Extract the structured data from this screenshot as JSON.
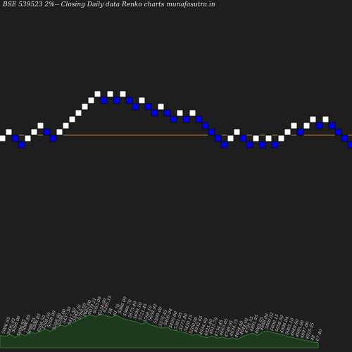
{
  "header": {
    "title": "BSE 539523 2%-- Closing Daily data Renko charts munafasutra.in"
  },
  "colors": {
    "background": "#1e1e1e",
    "up_brick": "#ffffff",
    "down_brick": "#0000ee",
    "brick_border": "#0a0a0a",
    "reference_line": "#c07820",
    "volume_fill": "#1e3a1e",
    "volume_line": "#2f7a2f"
  },
  "chart_data": {
    "type": "renko",
    "title": "BSE 539523 2%-- Closing Daily data Renko charts munafasutra.in",
    "brick_size": "2%",
    "brick_level_step": 1,
    "bricks": [
      {
        "level": 0,
        "dir": "up"
      },
      {
        "level": 1,
        "dir": "up"
      },
      {
        "level": 0,
        "dir": "down"
      },
      {
        "level": -1,
        "dir": "down"
      },
      {
        "level": 0,
        "dir": "up"
      },
      {
        "level": 1,
        "dir": "up"
      },
      {
        "level": 2,
        "dir": "up"
      },
      {
        "level": 1,
        "dir": "down"
      },
      {
        "level": 0,
        "dir": "down"
      },
      {
        "level": 1,
        "dir": "up"
      },
      {
        "level": 2,
        "dir": "up"
      },
      {
        "level": 3,
        "dir": "up"
      },
      {
        "level": 4,
        "dir": "up"
      },
      {
        "level": 5,
        "dir": "up"
      },
      {
        "level": 6,
        "dir": "up"
      },
      {
        "level": 7,
        "dir": "up"
      },
      {
        "level": 6,
        "dir": "down"
      },
      {
        "level": 7,
        "dir": "up"
      },
      {
        "level": 6,
        "dir": "down"
      },
      {
        "level": 7,
        "dir": "up"
      },
      {
        "level": 6,
        "dir": "down"
      },
      {
        "level": 5,
        "dir": "down"
      },
      {
        "level": 6,
        "dir": "up"
      },
      {
        "level": 5,
        "dir": "down"
      },
      {
        "level": 4,
        "dir": "down"
      },
      {
        "level": 5,
        "dir": "up"
      },
      {
        "level": 4,
        "dir": "down"
      },
      {
        "level": 3,
        "dir": "down"
      },
      {
        "level": 4,
        "dir": "up"
      },
      {
        "level": 3,
        "dir": "down"
      },
      {
        "level": 4,
        "dir": "up"
      },
      {
        "level": 3,
        "dir": "down"
      },
      {
        "level": 2,
        "dir": "down"
      },
      {
        "level": 1,
        "dir": "down"
      },
      {
        "level": 0,
        "dir": "down"
      },
      {
        "level": -1,
        "dir": "down"
      },
      {
        "level": 0,
        "dir": "up"
      },
      {
        "level": 1,
        "dir": "up"
      },
      {
        "level": 0,
        "dir": "down"
      },
      {
        "level": -1,
        "dir": "down"
      },
      {
        "level": 0,
        "dir": "up"
      },
      {
        "level": -1,
        "dir": "down"
      },
      {
        "level": 0,
        "dir": "up"
      },
      {
        "level": -1,
        "dir": "down"
      },
      {
        "level": 0,
        "dir": "up"
      },
      {
        "level": 1,
        "dir": "up"
      },
      {
        "level": 2,
        "dir": "up"
      },
      {
        "level": 1,
        "dir": "down"
      },
      {
        "level": 2,
        "dir": "up"
      },
      {
        "level": 3,
        "dir": "up"
      },
      {
        "level": 2,
        "dir": "down"
      },
      {
        "level": 3,
        "dir": "up"
      },
      {
        "level": 2,
        "dir": "down"
      },
      {
        "level": 1,
        "dir": "down"
      },
      {
        "level": 0,
        "dir": "down"
      },
      {
        "level": -1,
        "dir": "down"
      },
      {
        "level": 0,
        "dir": "up"
      }
    ],
    "reference_level": 0,
    "volume_labels": [
      "5006.85",
      "5006.85",
      "5098.00",
      "5006.85",
      "5006.85",
      "5098.25",
      "5006.85",
      "5208.50",
      "5208.00",
      "5208.00",
      "5208.00",
      "5208.00",
      "5437.50",
      "5417.50",
      "5548.20",
      "5700.60",
      "5682.00",
      "6039.21",
      "6053.00",
      "6234.00",
      "6295.15",
      "5R",
      "61.70",
      "5966.00",
      "5966.70",
      "5675.40",
      "5699.10",
      "5721.45",
      "5768.10",
      "5658.93",
      "5599.00",
      "5576.45",
      "5400.04",
      "5400.00",
      "5381.05",
      "5373.90",
      "5420.15",
      "5200.00",
      "4932.65",
      "4934.60",
      "4825.40",
      "4915.70",
      "4734.45",
      "4663.05",
      "4748.05",
      "4634.75",
      "4694.40",
      "4644.00",
      "4791.55",
      "4891.95",
      "4965.05",
      "4888.00",
      "5000.02",
      "5000.15",
      "5058.50",
      "4996.04",
      "5065.10",
      "4949.90",
      "4985.00",
      "4997.00",
      "4925.55",
      "48",
      "67.40"
    ],
    "volume_profile": [
      22,
      20,
      24,
      18,
      26,
      21,
      28,
      25,
      30,
      33,
      29,
      36,
      40,
      38,
      44,
      47,
      52,
      56,
      58,
      55,
      60,
      57,
      54,
      58,
      53,
      50,
      48,
      46,
      42,
      45,
      40,
      38,
      35,
      37,
      32,
      30,
      28,
      26,
      22,
      24,
      20,
      18,
      21,
      17,
      19,
      16,
      18,
      15,
      20,
      23,
      26,
      22,
      28,
      30,
      27,
      25,
      23,
      20,
      18,
      16,
      14,
      12,
      10,
      9
    ]
  }
}
